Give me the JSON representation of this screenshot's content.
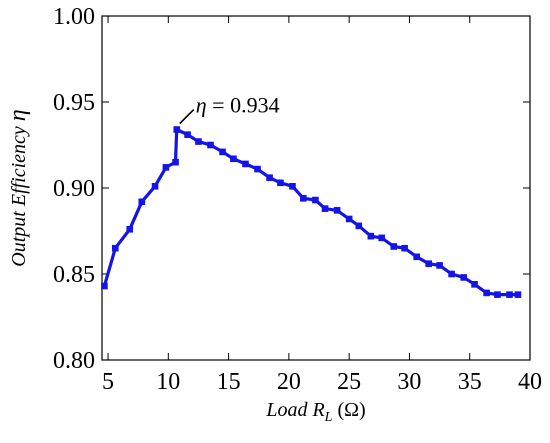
{
  "chart_data": {
    "type": "line",
    "xlabel": {
      "main": "Load R",
      "sub": "L",
      "unit": "(Ω)"
    },
    "ylabel": {
      "main": "Output Efficiency",
      "symbol": "η"
    },
    "xlim": [
      4.5,
      40
    ],
    "ylim": [
      0.8,
      1.0
    ],
    "x_ticks": [
      5,
      10,
      15,
      20,
      25,
      30,
      35,
      40
    ],
    "y_ticks": [
      0.8,
      0.85,
      0.9,
      0.95,
      1.0
    ],
    "x_tick_labels": [
      "5",
      "10",
      "15",
      "20",
      "25",
      "30",
      "35",
      "40"
    ],
    "y_tick_labels": [
      "0.80",
      "0.85",
      "0.90",
      "0.95",
      "1.00"
    ],
    "grid": false,
    "series": [
      {
        "color": "#1414e6",
        "marker": "square",
        "x": [
          4.7,
          5.6,
          6.8,
          7.8,
          8.9,
          9.8,
          10.6,
          10.7,
          11.6,
          12.5,
          13.5,
          14.5,
          15.4,
          16.4,
          17.4,
          18.4,
          19.3,
          20.3,
          21.2,
          22.2,
          23.0,
          24.0,
          25.0,
          25.8,
          26.8,
          27.7,
          28.7,
          29.6,
          30.6,
          31.6,
          32.5,
          33.5,
          34.5,
          35.4,
          36.4,
          37.3,
          38.3,
          39.0
        ],
        "y": [
          0.843,
          0.865,
          0.876,
          0.892,
          0.901,
          0.912,
          0.915,
          0.934,
          0.931,
          0.927,
          0.925,
          0.921,
          0.917,
          0.914,
          0.911,
          0.906,
          0.903,
          0.901,
          0.894,
          0.893,
          0.888,
          0.887,
          0.882,
          0.878,
          0.872,
          0.871,
          0.866,
          0.865,
          0.86,
          0.856,
          0.855,
          0.85,
          0.848,
          0.844,
          0.839,
          0.838,
          0.838,
          0.838
        ]
      }
    ],
    "annotations": [
      {
        "symbol": "η",
        "text": "= 0.934",
        "x": 10.7,
        "y": 0.934
      }
    ]
  }
}
